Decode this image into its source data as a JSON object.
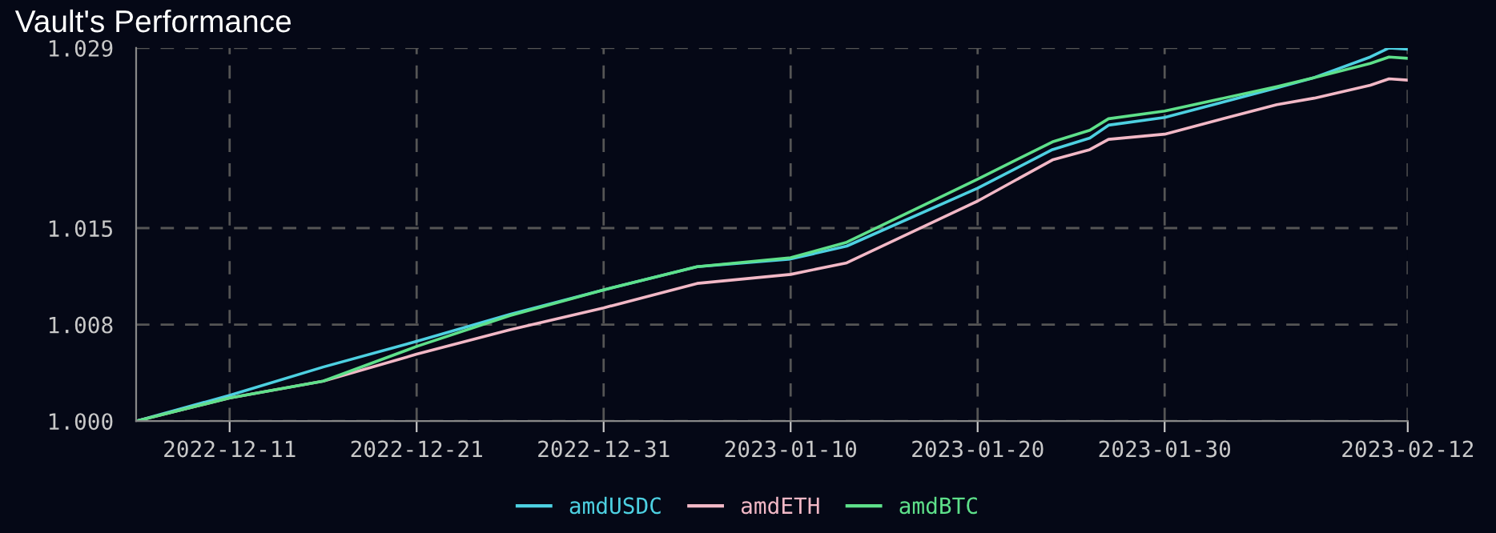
{
  "chart_data": {
    "type": "line",
    "title": "Vault's Performance",
    "x": [
      "2022-12-06",
      "2022-12-11",
      "2022-12-16",
      "2022-12-21",
      "2022-12-26",
      "2022-12-31",
      "2023-01-05",
      "2023-01-10",
      "2023-01-13",
      "2023-01-20",
      "2023-01-24",
      "2023-01-26",
      "2023-01-27",
      "2023-01-30",
      "2023-02-05",
      "2023-02-07",
      "2023-02-10",
      "2023-02-11",
      "2023-02-12"
    ],
    "series": [
      {
        "name": "amdUSDC",
        "color": "#4dd0e1",
        "values": [
          1.0,
          1.002,
          1.0042,
          1.0062,
          1.0083,
          1.0102,
          1.012,
          1.0126,
          1.0136,
          1.0181,
          1.0211,
          1.022,
          1.023,
          1.0236,
          1.0259,
          1.0267,
          1.0283,
          1.029,
          1.0289
        ]
      },
      {
        "name": "amdETH",
        "color": "#f2b8c6",
        "values": [
          1.0,
          1.0018,
          1.0031,
          1.0052,
          1.0071,
          1.0088,
          1.0107,
          1.0114,
          1.0123,
          1.0171,
          1.0203,
          1.0211,
          1.0219,
          1.0223,
          1.0246,
          1.0251,
          1.0261,
          1.0266,
          1.0265
        ]
      },
      {
        "name": "amdBTC",
        "color": "#5ee08a",
        "values": [
          1.0,
          1.0018,
          1.0031,
          1.0058,
          1.0082,
          1.0102,
          1.012,
          1.0127,
          1.0139,
          1.0188,
          1.0217,
          1.0226,
          1.0235,
          1.0241,
          1.026,
          1.0267,
          1.0278,
          1.0283,
          1.0282
        ]
      }
    ],
    "xlim": [
      "2022-12-06",
      "2023-02-12"
    ],
    "xticks": [
      "2022-12-11",
      "2022-12-21",
      "2022-12-31",
      "2023-01-10",
      "2023-01-20",
      "2023-01-30",
      "2023-02-12"
    ],
    "ylim": [
      1.0,
      1.029
    ],
    "yticks": [
      {
        "value": 1.0,
        "label": "1.000"
      },
      {
        "value": 1.0075,
        "label": "1.008"
      },
      {
        "value": 1.015,
        "label": "1.015"
      },
      {
        "value": 1.029,
        "label": "1.029"
      }
    ],
    "grid": true,
    "legend": "bottom",
    "line_style": "solid"
  }
}
